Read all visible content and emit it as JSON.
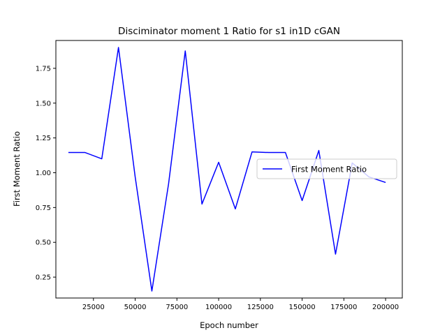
{
  "chart_data": {
    "type": "line",
    "title": "Disciminator moment 1 Ratio for s1 in1D cGAN",
    "xlabel": "Epoch number",
    "ylabel": "First Moment Ratio",
    "xlim": [
      2500,
      210000
    ],
    "ylim": [
      0.1,
      1.95
    ],
    "xticks": [
      25000,
      50000,
      75000,
      100000,
      125000,
      150000,
      175000,
      200000
    ],
    "yticks": [
      0.25,
      0.5,
      0.75,
      1.0,
      1.25,
      1.5,
      1.75
    ],
    "xtick_labels": [
      "25000",
      "50000",
      "75000",
      "100000",
      "125000",
      "150000",
      "175000",
      "200000"
    ],
    "ytick_labels": [
      "0.25",
      "0.50",
      "0.75",
      "1.00",
      "1.25",
      "1.50",
      "1.75"
    ],
    "grid": false,
    "legend_position": "center-right",
    "series": [
      {
        "name": "First Moment Ratio",
        "color": "#0000ff",
        "x": [
          10000,
          20000,
          30000,
          40000,
          50000,
          60000,
          70000,
          80000,
          90000,
          100000,
          110000,
          120000,
          130000,
          140000,
          150000,
          160000,
          170000,
          180000,
          190000,
          200000
        ],
        "y": [
          1.145,
          1.145,
          1.1,
          1.9,
          0.97,
          0.15,
          0.92,
          1.875,
          0.775,
          1.075,
          0.74,
          1.15,
          1.145,
          1.145,
          0.8,
          1.16,
          0.415,
          1.07,
          0.97,
          0.93
        ]
      }
    ]
  }
}
